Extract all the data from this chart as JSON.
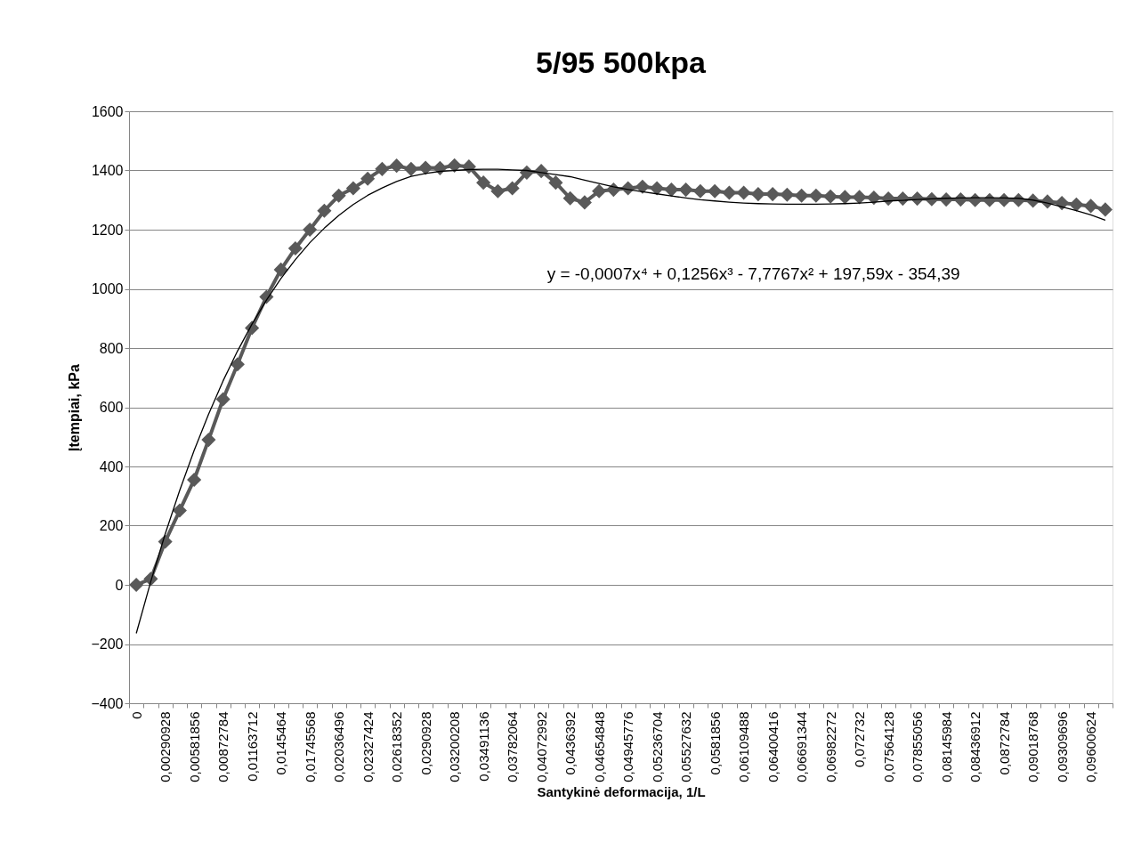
{
  "chart_data": {
    "type": "line",
    "title": "5/95 500kpa",
    "xlabel": "Santykinė deformacija, 1/L",
    "ylabel": "Įtempiai, kPa",
    "categories": [
      "0",
      null,
      "0,00290928",
      null,
      "0,00581856",
      null,
      "0,00872784",
      null,
      "0,01163712",
      null,
      "0,0145464",
      null,
      "0,01745568",
      null,
      "0,02036496",
      null,
      "0,02327424",
      null,
      "0,02618352",
      null,
      "0,0290928",
      null,
      "0,03200208",
      null,
      "0,03491136",
      null,
      "0,03782064",
      null,
      "0,04072992",
      null,
      "0,0436392",
      null,
      "0,04654848",
      null,
      "0,04945776",
      null,
      "0,05236704",
      null,
      "0,05527632",
      null,
      "0,0581856",
      null,
      "0,06109488",
      null,
      "0,06400416",
      null,
      "0,06691344",
      null,
      "0,06982272",
      null,
      "0,072732",
      null,
      "0,07564128",
      null,
      "0,07855056",
      null,
      "0,08145984",
      null,
      "0,08436912",
      null,
      "0,0872784",
      null,
      "0,09018768",
      null,
      "0,09309696",
      null,
      "0,09600624",
      null
    ],
    "series": [
      {
        "color": "#595959",
        "marker": "diamond",
        "line_style": "solid",
        "values": [
          0,
          20,
          146,
          251,
          355,
          490,
          627,
          745,
          868,
          973,
          1065,
          1137,
          1200,
          1264,
          1315,
          1340,
          1372,
          1405,
          1416,
          1405,
          1409,
          1408,
          1417,
          1413,
          1359,
          1330,
          1340,
          1393,
          1398,
          1359,
          1306,
          1292,
          1330,
          1335,
          1340,
          1345,
          1340,
          1335,
          1335,
          1330,
          1330,
          1325,
          1325,
          1320,
          1320,
          1318,
          1315,
          1315,
          1312,
          1310,
          1310,
          1308,
          1305,
          1305,
          1305,
          1303,
          1302,
          1302,
          1300,
          1300,
          1300,
          1300,
          1298,
          1295,
          1290,
          1285,
          1280,
          1268
        ]
      },
      {
        "color": "#000000",
        "marker": "none",
        "line_style": "solid",
        "values": [
          -164,
          11,
          172,
          319,
          454,
          577,
          689,
          790,
          881,
          962,
          1035,
          1099,
          1156,
          1205,
          1248,
          1285,
          1316,
          1341,
          1363,
          1380,
          1390,
          1397,
          1400,
          1403,
          1404,
          1404,
          1402,
          1400,
          1393,
          1386,
          1379,
          1367,
          1356,
          1345,
          1336,
          1328,
          1321,
          1314,
          1307,
          1301,
          1297,
          1293,
          1290,
          1288,
          1287,
          1286,
          1286,
          1286,
          1287,
          1288,
          1290,
          1293,
          1297,
          1299,
          1302,
          1304,
          1306,
          1307,
          1308,
          1308,
          1307,
          1306,
          1300,
          1290,
          1277,
          1264,
          1250,
          1232
        ]
      }
    ],
    "ylim": [
      -400,
      1600
    ],
    "yticks": [
      -400,
      -200,
      0,
      200,
      400,
      600,
      800,
      1000,
      1200,
      1400,
      1600
    ],
    "grid": "y",
    "annotations": [
      "y = -0,0007x⁴ + 0,1256x³ - 7,7767x² + 197,59x - 354,39"
    ]
  }
}
